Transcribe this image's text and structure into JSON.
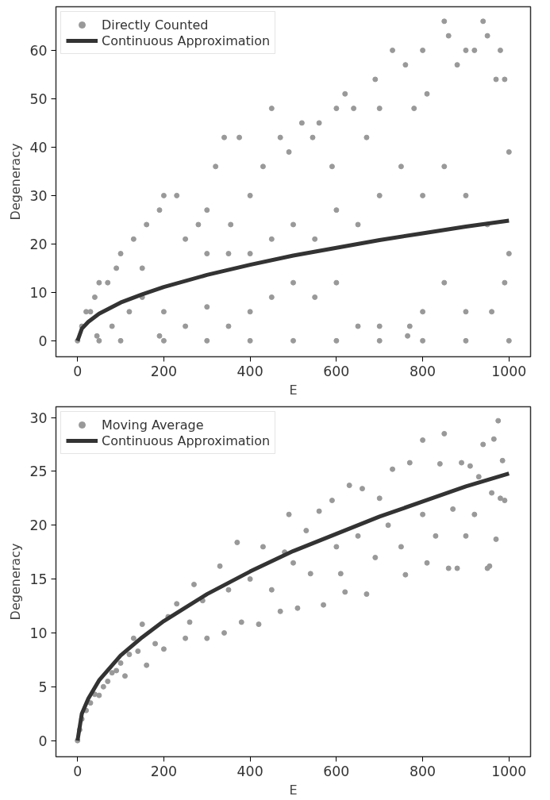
{
  "chart_data": [
    {
      "type": "scatter",
      "xlabel": "E",
      "ylabel": "Degeneracy",
      "xlim": [
        -50,
        1050
      ],
      "ylim": [
        -3.3,
        69
      ],
      "xticks": [
        0,
        200,
        400,
        600,
        800,
        1000
      ],
      "yticks": [
        0,
        10,
        20,
        30,
        40,
        50,
        60
      ],
      "grid": false,
      "legend": "top left",
      "series": [
        {
          "name": "Directly Counted",
          "marker": "circle",
          "color": "#999999",
          "x": [
            0,
            50,
            100,
            200,
            300,
            400,
            500,
            600,
            700,
            800,
            900,
            1000,
            10,
            20,
            40,
            50,
            70,
            100,
            130,
            160,
            190,
            200,
            230,
            280,
            300,
            320,
            340,
            375,
            355,
            400,
            430,
            450,
            470,
            490,
            520,
            545,
            560,
            590,
            600,
            620,
            640,
            670,
            690,
            700,
            730,
            760,
            780,
            800,
            810,
            850,
            860,
            880,
            900,
            920,
            940,
            950,
            970,
            990,
            1000,
            980,
            90,
            150,
            250,
            300,
            350,
            400,
            450,
            500,
            550,
            600,
            650,
            700,
            750,
            800,
            850,
            900,
            950,
            1000,
            990,
            960,
            900,
            850,
            800,
            770,
            765,
            700,
            650,
            600,
            550,
            500,
            450,
            400,
            350,
            300,
            250,
            200,
            190,
            150,
            120,
            80,
            45,
            30
          ],
          "values": [
            0,
            0,
            0,
            0,
            0,
            0,
            0,
            0,
            0,
            0,
            0,
            0,
            3,
            6,
            9,
            12,
            12,
            18,
            21,
            24,
            27,
            30,
            30,
            24,
            27,
            36,
            42,
            42,
            24,
            30,
            36,
            48,
            42,
            39,
            45,
            42,
            45,
            36,
            48,
            51,
            48,
            42,
            54,
            48,
            60,
            57,
            48,
            60,
            51,
            66,
            63,
            57,
            60,
            60,
            66,
            63,
            54,
            54,
            39,
            60,
            15,
            15,
            21,
            18,
            18,
            18,
            21,
            24,
            21,
            27,
            24,
            30,
            36,
            30,
            36,
            30,
            24,
            18,
            12,
            6,
            6,
            12,
            6,
            3,
            1,
            3,
            3,
            12,
            9,
            12,
            9,
            6,
            3,
            7,
            3,
            6,
            1,
            9,
            6,
            3,
            1,
            6
          ]
        },
        {
          "name": "Continuous Approximation",
          "type": "line",
          "marker": "none",
          "line_style": "solid",
          "color": "#333333",
          "x": [
            0,
            10,
            25,
            50,
            100,
            150,
            200,
            300,
            400,
            500,
            600,
            700,
            800,
            900,
            1000
          ],
          "values": [
            0,
            2.5,
            3.9,
            5.6,
            7.9,
            9.6,
            11.1,
            13.6,
            15.7,
            17.6,
            19.2,
            20.8,
            22.2,
            23.6,
            24.8
          ]
        }
      ]
    },
    {
      "type": "scatter",
      "xlabel": "E",
      "ylabel": "Degeneracy",
      "xlim": [
        -50,
        1050
      ],
      "ylim": [
        -1.5,
        31
      ],
      "xticks": [
        0,
        200,
        400,
        600,
        800,
        1000
      ],
      "yticks": [
        0,
        5,
        10,
        15,
        20,
        25,
        30
      ],
      "grid": false,
      "legend": "top left",
      "series": [
        {
          "name": "Moving Average",
          "marker": "circle",
          "color": "#999999",
          "x": [
            0,
            5,
            10,
            20,
            30,
            40,
            50,
            60,
            70,
            80,
            90,
            100,
            110,
            120,
            130,
            140,
            150,
            160,
            180,
            200,
            210,
            230,
            250,
            260,
            270,
            290,
            300,
            330,
            340,
            350,
            370,
            380,
            400,
            420,
            430,
            450,
            470,
            480,
            490,
            500,
            510,
            530,
            540,
            560,
            570,
            590,
            600,
            610,
            620,
            630,
            650,
            660,
            670,
            690,
            700,
            720,
            730,
            750,
            760,
            770,
            800,
            800,
            810,
            830,
            840,
            850,
            860,
            870,
            880,
            890,
            900,
            910,
            920,
            930,
            940,
            950,
            955,
            960,
            965,
            975,
            980,
            985,
            970,
            990
          ],
          "values": [
            0,
            1,
            2,
            2.8,
            3.5,
            4.3,
            4.2,
            5,
            5.5,
            6.3,
            6.5,
            7.2,
            6,
            8,
            9.5,
            8.3,
            10.8,
            7,
            9,
            8.5,
            11.5,
            12.7,
            9.5,
            11,
            14.5,
            13,
            9.5,
            16.2,
            10,
            14,
            18.4,
            11,
            15,
            10.8,
            18,
            14,
            12,
            17.5,
            21,
            16.5,
            12.3,
            19.5,
            15.5,
            21.3,
            12.6,
            22.3,
            18,
            15.5,
            13.8,
            23.7,
            19,
            23.4,
            13.6,
            17,
            22.5,
            20,
            25.2,
            18,
            15.4,
            25.8,
            27.9,
            21,
            16.5,
            19,
            25.7,
            28.5,
            16,
            21.5,
            16,
            25.8,
            19,
            25.5,
            21,
            24.5,
            27.5,
            16,
            16.2,
            23,
            28,
            29.7,
            22.5,
            26,
            18.7,
            22.3
          ]
        },
        {
          "name": "Continuous Approximation",
          "type": "line",
          "marker": "none",
          "line_style": "solid",
          "color": "#333333",
          "x": [
            0,
            10,
            25,
            50,
            100,
            150,
            200,
            300,
            400,
            500,
            600,
            700,
            800,
            900,
            1000
          ],
          "values": [
            0,
            2.5,
            3.9,
            5.6,
            7.9,
            9.6,
            11.1,
            13.6,
            15.7,
            17.6,
            19.2,
            20.8,
            22.2,
            23.6,
            24.8
          ]
        }
      ]
    }
  ]
}
